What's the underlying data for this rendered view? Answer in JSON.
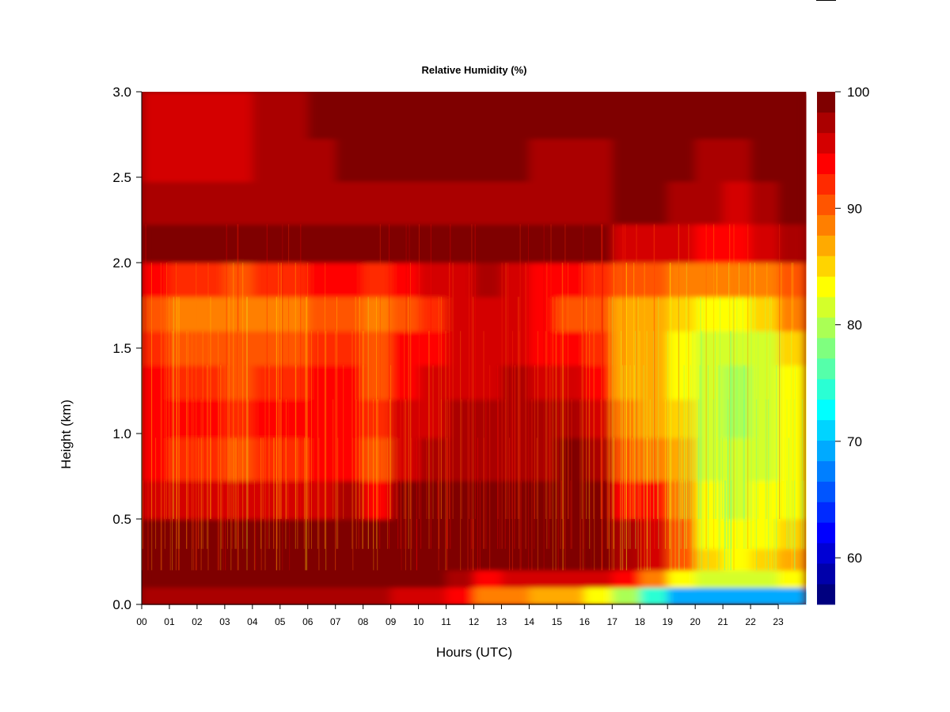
{
  "chart_data": {
    "type": "heatmap",
    "title": "Relative Humidity (%)",
    "xlabel": "Hours (UTC)",
    "ylabel": "Height (km)",
    "x_categories": [
      "00",
      "01",
      "02",
      "03",
      "04",
      "05",
      "06",
      "07",
      "08",
      "09",
      "10",
      "11",
      "12",
      "13",
      "14",
      "15",
      "16",
      "17",
      "18",
      "19",
      "20",
      "21",
      "22",
      "23"
    ],
    "x_range_hours": [
      0,
      24
    ],
    "y_ticks": [
      "0.0",
      "0.5",
      "1.0",
      "1.5",
      "2.0",
      "2.5",
      "3.0"
    ],
    "y_tick_values": [
      0.0,
      0.5,
      1.0,
      1.5,
      2.0,
      2.5,
      3.0
    ],
    "ylim": [
      0.0,
      3.0
    ],
    "colorbar": {
      "range": [
        56,
        100
      ],
      "tick_labels": [
        "60",
        "70",
        "80",
        "90",
        "100"
      ],
      "tick_values": [
        60,
        70,
        80,
        90,
        100
      ],
      "colors": [
        "#00007f",
        "#0000aa",
        "#0000d4",
        "#0000ff",
        "#002aff",
        "#0055ff",
        "#007fff",
        "#00aaff",
        "#00d4ff",
        "#00ffff",
        "#2affd4",
        "#55ffaa",
        "#7fff7f",
        "#aaff55",
        "#d4ff2a",
        "#ffff00",
        "#ffd400",
        "#ffaa00",
        "#ff7f00",
        "#ff5500",
        "#ff2a00",
        "#ff0000",
        "#d40000",
        "#aa0000",
        "#7f0000"
      ]
    },
    "heights_km": [
      0.05,
      0.15,
      0.25,
      0.4,
      0.6,
      0.85,
      1.1,
      1.3,
      1.5,
      1.7,
      1.9,
      2.1,
      2.35,
      2.6,
      2.85
    ],
    "hours": [
      0,
      1,
      2,
      3,
      4,
      5,
      6,
      7,
      8,
      9,
      10,
      11,
      12,
      13,
      14,
      15,
      16,
      17,
      18,
      19,
      20,
      21,
      22,
      23
    ],
    "rh_percent": [
      [
        97,
        97,
        97,
        97,
        97,
        97,
        97,
        97,
        97,
        96,
        96,
        93,
        88,
        88,
        87,
        86,
        84,
        80,
        74,
        70,
        70,
        69,
        69,
        70
      ],
      [
        100,
        100,
        100,
        100,
        100,
        100,
        100,
        100,
        100,
        100,
        99,
        97,
        94,
        96,
        96,
        96,
        96,
        93,
        88,
        84,
        82,
        82,
        82,
        83
      ],
      [
        100,
        100,
        100,
        100,
        100,
        100,
        100,
        100,
        100,
        100,
        100,
        100,
        99,
        100,
        100,
        100,
        100,
        98,
        96,
        90,
        85,
        84,
        85,
        86
      ],
      [
        100,
        100,
        100,
        100,
        100,
        100,
        100,
        100,
        100,
        100,
        100,
        100,
        100,
        100,
        100,
        100,
        100,
        97,
        95,
        90,
        84,
        83,
        84,
        85
      ],
      [
        96,
        95,
        95,
        95,
        95,
        95,
        96,
        97,
        93,
        99,
        100,
        100,
        100,
        99,
        100,
        100,
        100,
        94,
        93,
        88,
        83,
        82,
        83,
        84
      ],
      [
        93,
        92,
        92,
        91,
        92,
        92,
        93,
        94,
        91,
        96,
        97,
        98,
        98,
        98,
        98,
        99,
        97,
        90,
        89,
        86,
        82,
        81,
        82,
        84
      ],
      [
        94,
        93,
        93,
        92,
        93,
        93,
        94,
        94,
        92,
        95,
        96,
        97,
        97,
        98,
        97,
        97,
        95,
        88,
        87,
        85,
        81,
        80,
        81,
        84
      ],
      [
        93,
        92,
        92,
        91,
        92,
        92,
        93,
        93,
        91,
        94,
        95,
        96,
        96,
        97,
        96,
        96,
        94,
        87,
        86,
        84,
        81,
        80,
        81,
        84
      ],
      [
        92,
        91,
        91,
        90,
        91,
        91,
        92,
        92,
        90,
        93,
        94,
        96,
        96,
        96,
        94,
        93,
        92,
        86,
        86,
        84,
        82,
        81,
        82,
        85
      ],
      [
        90,
        89,
        89,
        88,
        89,
        89,
        90,
        90,
        88,
        91,
        92,
        95,
        96,
        95,
        93,
        91,
        90,
        86,
        86,
        85,
        84,
        84,
        85,
        88
      ],
      [
        93,
        92,
        92,
        91,
        92,
        92,
        93,
        93,
        92,
        94,
        95,
        96,
        97,
        96,
        94,
        93,
        92,
        90,
        90,
        89,
        88,
        88,
        89,
        91
      ],
      [
        99,
        99,
        99,
        99,
        99,
        99,
        99,
        99,
        99,
        99,
        99,
        99,
        99,
        99,
        99,
        99,
        99,
        96,
        95,
        95,
        94,
        94,
        95,
        97
      ],
      [
        97,
        97,
        97,
        97,
        97,
        97,
        98,
        98,
        98,
        98,
        98,
        98,
        98,
        98,
        98,
        98,
        98,
        99,
        99,
        97,
        97,
        96,
        97,
        99
      ],
      [
        96,
        96,
        96,
        96,
        97,
        97,
        98,
        99,
        99,
        99,
        99,
        99,
        99,
        99,
        98,
        97,
        97,
        99,
        100,
        99,
        98,
        97,
        99,
        100
      ],
      [
        96,
        96,
        96,
        96,
        97,
        98,
        99,
        100,
        100,
        100,
        100,
        100,
        100,
        100,
        100,
        100,
        100,
        100,
        100,
        100,
        100,
        100,
        100,
        100
      ]
    ]
  }
}
